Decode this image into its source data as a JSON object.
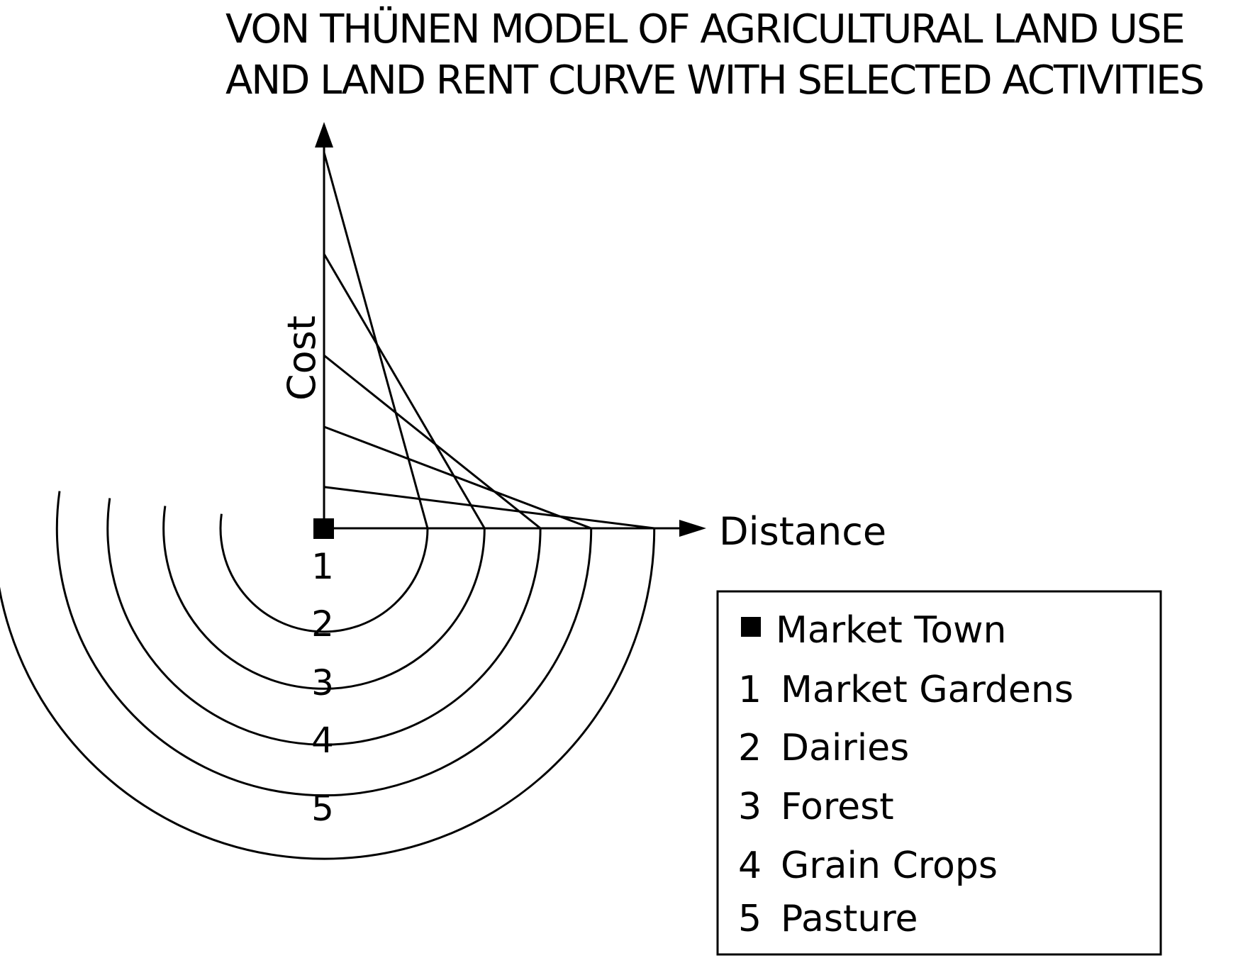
{
  "title": {
    "line1": "VON THÜNEN MODEL OF AGRICULTURAL LAND USE",
    "line2": "AND LAND RENT CURVE WITH SELECTED ACTIVITIES"
  },
  "axes": {
    "y_label": "Cost",
    "x_label": "Distance"
  },
  "zones": [
    "1",
    "2",
    "3",
    "4",
    "5"
  ],
  "legend": {
    "items": [
      {
        "key": "■",
        "label": "Market Town"
      },
      {
        "key": "1",
        "label": "Market Gardens"
      },
      {
        "key": "2",
        "label": "Dairies"
      },
      {
        "key": "3",
        "label": "Forest"
      },
      {
        "key": "4",
        "label": "Grain Crops"
      },
      {
        "key": "5",
        "label": "Pasture"
      }
    ]
  },
  "rent_curves": [
    {
      "zone": "1",
      "intercept": 1.0,
      "zero_distance": 1.0
    },
    {
      "zone": "2",
      "intercept": 0.73,
      "zero_distance": 1.55
    },
    {
      "zone": "3",
      "intercept": 0.46,
      "zero_distance": 2.09
    },
    {
      "zone": "4",
      "intercept": 0.27,
      "zero_distance": 2.58
    },
    {
      "zone": "5",
      "intercept": 0.11,
      "zero_distance": 3.19
    }
  ],
  "colors": {
    "ink": "#000000",
    "background": "#ffffff"
  }
}
